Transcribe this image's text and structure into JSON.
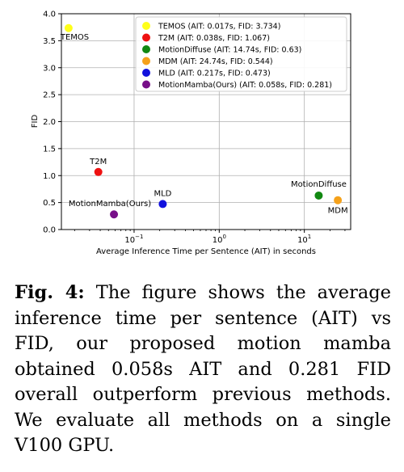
{
  "chart_data": {
    "type": "scatter",
    "title": "",
    "xlabel": "Average Inference Time per Sentence (AIT) in seconds",
    "ylabel": "FID",
    "xscale": "log",
    "xlim": [
      0.014,
      35
    ],
    "ylim": [
      0.0,
      4.0
    ],
    "yticks": [
      "0.0",
      "0.5",
      "1.0",
      "1.5",
      "2.0",
      "2.5",
      "3.0",
      "3.5",
      "4.0"
    ],
    "xticks": [
      {
        "value": 0.1,
        "base": "10",
        "exp": "−1"
      },
      {
        "value": 1,
        "base": "10",
        "exp": "0"
      },
      {
        "value": 10,
        "base": "10",
        "exp": "1"
      }
    ],
    "grid": true,
    "legend_position": "top-right",
    "series": [
      {
        "name": "TEMOS (AIT: 0.017s, FID: 3.734)",
        "label": "TEMOS",
        "x": 0.017,
        "y": 3.734,
        "color": "#ffff1a"
      },
      {
        "name": "T2M (AIT: 0.038s, FID: 1.067)",
        "label": "T2M",
        "x": 0.038,
        "y": 1.067,
        "color": "#ee1111"
      },
      {
        "name": "MotionDiffuse (AIT: 14.74s, FID: 0.63)",
        "label": "MotionDiffuse",
        "x": 14.74,
        "y": 0.63,
        "color": "#118811"
      },
      {
        "name": "MDM (AIT: 24.74s, FID: 0.544)",
        "label": "MDM",
        "x": 24.74,
        "y": 0.544,
        "color": "#f5a11a"
      },
      {
        "name": "MLD (AIT: 0.217s, FID: 0.473)",
        "label": "MLD",
        "x": 0.217,
        "y": 0.473,
        "color": "#1111dd"
      },
      {
        "name": "MotionMamba(Ours) (AIT: 0.058s, FID: 0.281)",
        "label": "MotionMamba(Ours)",
        "x": 0.058,
        "y": 0.281,
        "color": "#770f88"
      }
    ]
  },
  "caption": {
    "label": "Fig. 4:",
    "text": "The figure shows the average inference time per sentence (AIT) vs FID, our proposed motion mamba obtained 0.058s AIT and 0.281 FID overall outperform previous methods. We evaluate all methods on a single V100 GPU."
  }
}
